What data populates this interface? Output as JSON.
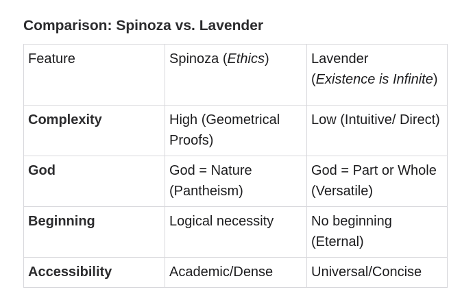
{
  "title": "Comparison: Spinoza vs. Lavender",
  "table": {
    "header": {
      "feature": "Feature",
      "spinoza_name": "Spinoza (",
      "spinoza_work": "Ethics",
      "spinoza_close": ")",
      "lavender_name": "Lavender",
      "lavender_open": "(",
      "lavender_work": "Existence is Infinite",
      "lavender_close": ")"
    },
    "rows": [
      {
        "feature": "Complexity",
        "spinoza": "High (Geometrical Proofs)",
        "lavender": "Low (Intuitive/ Direct)"
      },
      {
        "feature": "God",
        "spinoza": "God = Nature (Pantheism)",
        "lavender": "God = Part or Whole (Versatile)"
      },
      {
        "feature": "Beginning",
        "spinoza": "Logical necessity",
        "lavender": "No beginning (Eternal)"
      },
      {
        "feature": "Accessibility",
        "spinoza": "Academic/Dense",
        "lavender": "Universal/Concise"
      }
    ]
  }
}
